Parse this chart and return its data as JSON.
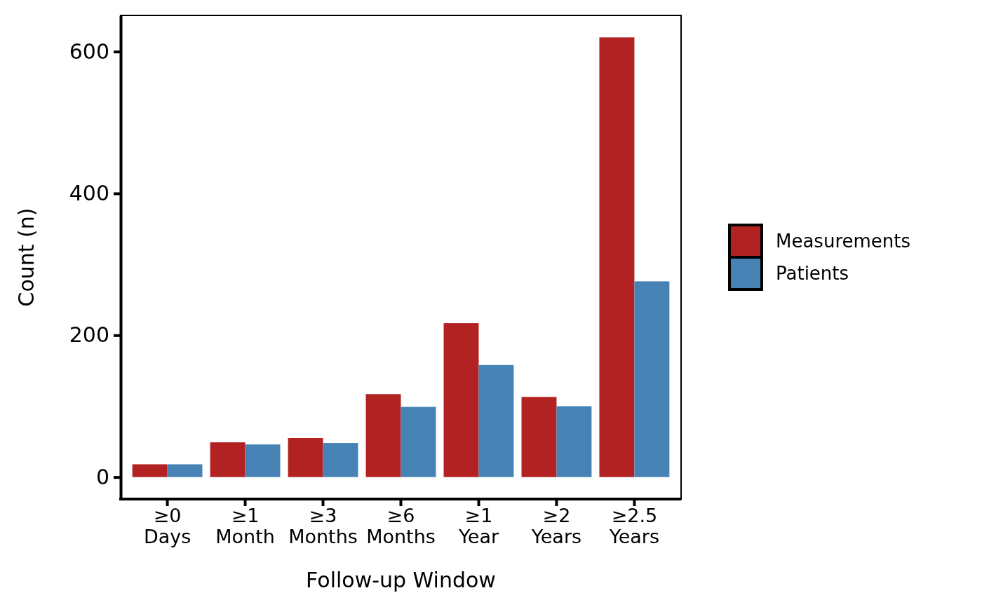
{
  "chart_data": {
    "type": "bar",
    "xlabel": "Follow-up Window",
    "ylabel": "Count (n)",
    "categories": [
      "≥0 Days",
      "≥1 Month",
      "≥3 Months",
      "≥6 Months",
      "≥1 Year",
      "≥2 Years",
      "≥2.5 Years"
    ],
    "series": [
      {
        "name": "Measurements",
        "color": "#b22222",
        "values": [
          18,
          49,
          55,
          117,
          217,
          113,
          620
        ]
      },
      {
        "name": "Patients",
        "color": "#4682b4",
        "values": [
          18,
          46,
          48,
          99,
          158,
          100,
          276
        ]
      }
    ],
    "ylim": [
      -31,
      651
    ],
    "yticks": [
      0,
      200,
      400,
      600
    ],
    "legend": "right"
  }
}
